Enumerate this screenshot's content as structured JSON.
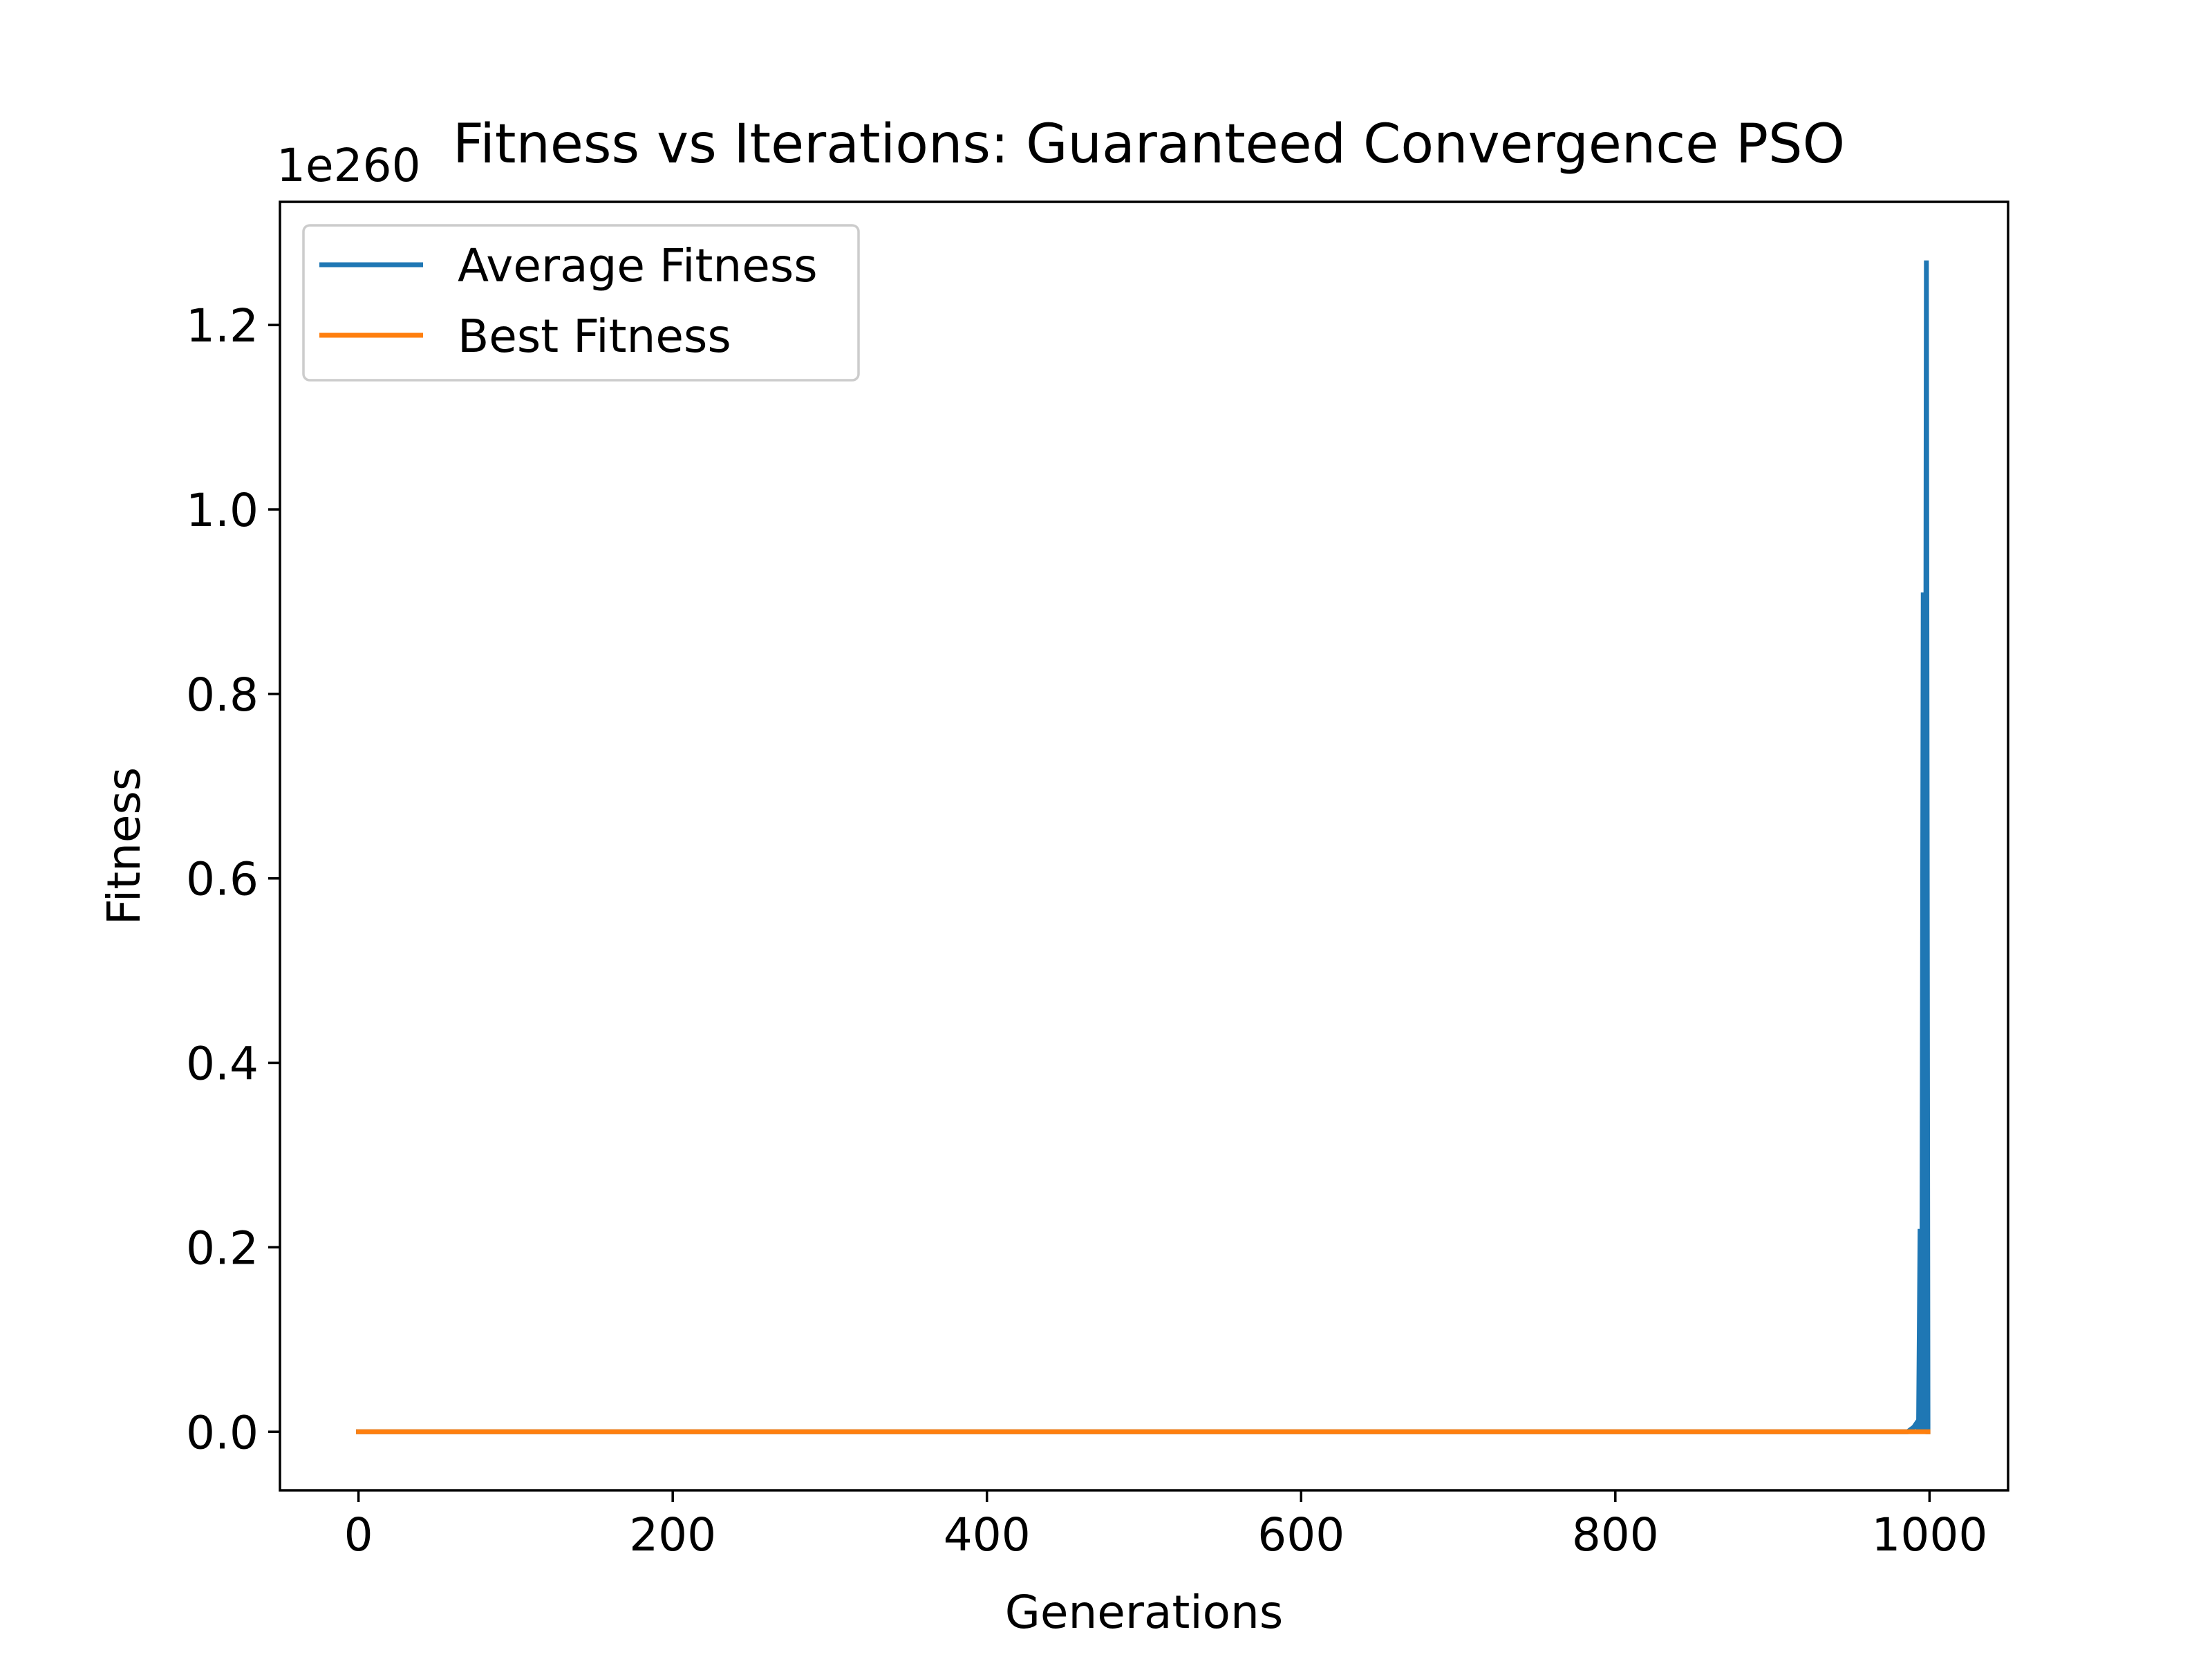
{
  "chart_data": {
    "type": "line",
    "title": "Fitness vs Iterations: Guaranteed Convergence PSO",
    "xlabel": "Generations",
    "ylabel": "Fitness",
    "y_offset_label": "1e260",
    "xlim": [
      -50,
      1050
    ],
    "ylim": [
      -0.0635,
      1.3335
    ],
    "x_ticks": [
      0,
      200,
      400,
      600,
      800,
      1000
    ],
    "x_tick_labels": [
      "0",
      "200",
      "400",
      "600",
      "800",
      "1000"
    ],
    "y_ticks": [
      0.0,
      0.2,
      0.4,
      0.6,
      0.8,
      1.0,
      1.2
    ],
    "y_tick_labels": [
      "0.0",
      "0.2",
      "0.4",
      "0.6",
      "0.8",
      "1.0",
      "1.2"
    ],
    "grid": false,
    "legend_position": "top-left",
    "series": [
      {
        "name": "Average Fitness",
        "color": "#1f77b4",
        "x": [
          0,
          986,
          990,
          992,
          993,
          994,
          995,
          996,
          997,
          998,
          999
        ],
        "y": [
          0,
          0,
          0.005,
          0.01,
          0.0,
          0.22,
          0.0,
          0.91,
          0.0,
          1.27,
          0.0
        ]
      },
      {
        "name": "Best Fitness",
        "color": "#ff7f0e",
        "x": [
          0,
          999
        ],
        "y": [
          0,
          0
        ]
      }
    ]
  }
}
